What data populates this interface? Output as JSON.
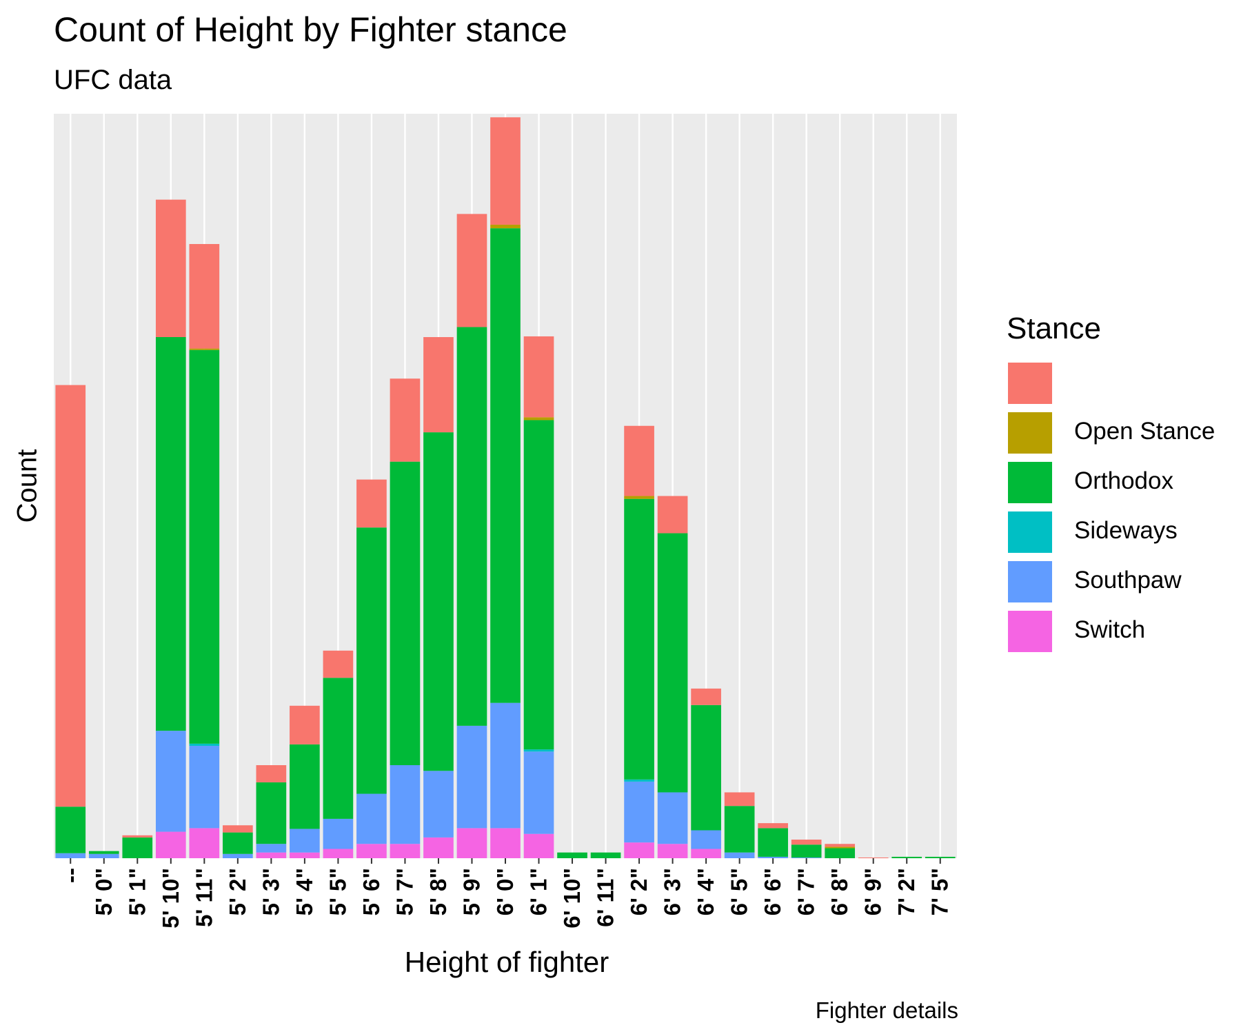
{
  "chart_data": {
    "type": "bar",
    "stacked": true,
    "title": "Count of Height by Fighter stance",
    "subtitle": "UFC data",
    "xlabel": "Height of fighter",
    "ylabel": "Count",
    "caption": "Fighter details",
    "y_tick_labels_shown": false,
    "ylim": [
      0,
      1040
    ],
    "grid": "vertical",
    "legend": {
      "title": "Stance",
      "position": "right"
    },
    "categories": [
      "--",
      "5' 0\"",
      "5' 1\"",
      "5' 10\"",
      "5' 11\"",
      "5' 2\"",
      "5' 3\"",
      "5' 4\"",
      "5' 5\"",
      "5' 6\"",
      "5' 7\"",
      "5' 8\"",
      "5' 9\"",
      "6' 0\"",
      "6' 1\"",
      "6' 10\"",
      "6' 11\"",
      "6' 2\"",
      "6' 3\"",
      "6' 4\"",
      "6' 5\"",
      "6' 6\"",
      "6' 7\"",
      "6' 8\"",
      "6' 9\"",
      "7' 2\"",
      "7' 5\""
    ],
    "series": [
      {
        "name": "",
        "color": "#F8766D",
        "values": [
          589,
          0,
          3,
          192,
          146,
          10,
          24,
          54,
          38,
          67,
          116,
          133,
          158,
          150,
          113,
          0,
          0,
          98,
          52,
          23,
          19,
          7,
          7,
          4,
          1,
          0,
          0
        ]
      },
      {
        "name": "Open Stance",
        "color": "#B79F00",
        "values": [
          0,
          0,
          0,
          0,
          2,
          0,
          0,
          0,
          0,
          0,
          0,
          0,
          0,
          5,
          4,
          0,
          0,
          4,
          0,
          0,
          0,
          0,
          0,
          2,
          0,
          0,
          0
        ]
      },
      {
        "name": "Orthodox",
        "color": "#00BA38",
        "values": [
          65,
          4,
          29,
          550,
          550,
          30,
          86,
          118,
          197,
          372,
          424,
          473,
          557,
          663,
          460,
          8,
          8,
          392,
          362,
          175,
          65,
          40,
          18,
          14,
          0,
          2,
          2
        ]
      },
      {
        "name": "Sideways",
        "color": "#00BFC4",
        "values": [
          0,
          0,
          0,
          0,
          3,
          0,
          0,
          0,
          0,
          0,
          0,
          0,
          0,
          0,
          3,
          0,
          0,
          3,
          0,
          0,
          0,
          0,
          0,
          0,
          0,
          0,
          0
        ]
      },
      {
        "name": "Southpaw",
        "color": "#619CFF",
        "values": [
          7,
          6,
          0,
          141,
          115,
          6,
          12,
          33,
          42,
          70,
          110,
          93,
          143,
          175,
          115,
          0,
          0,
          85,
          72,
          26,
          8,
          2,
          1,
          0,
          0,
          0,
          0
        ]
      },
      {
        "name": "Switch",
        "color": "#F564E3",
        "values": [
          0,
          0,
          0,
          37,
          42,
          0,
          8,
          8,
          13,
          20,
          20,
          29,
          42,
          42,
          34,
          0,
          0,
          22,
          20,
          13,
          0,
          0,
          0,
          0,
          0,
          0,
          0
        ]
      }
    ]
  }
}
